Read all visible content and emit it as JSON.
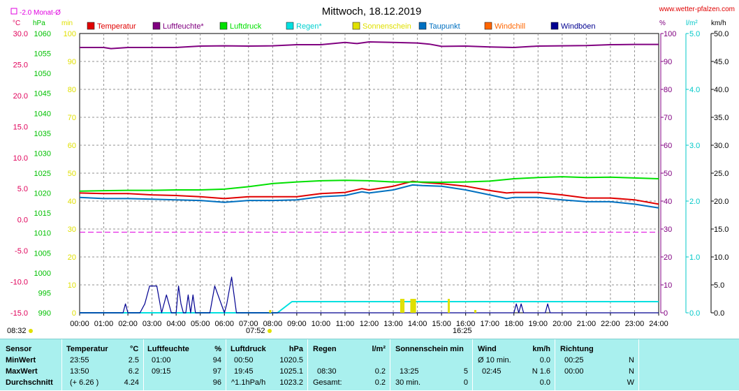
{
  "header": {
    "title": "Mittwoch, 18.12.2019",
    "site": "www.wetter-pfalzen.com",
    "monthly_avg_label": "-2.0 Monat-Ø",
    "monthly_avg_value": -2.0,
    "time_left": "08:32",
    "sunrise": "07:52",
    "sunset": "16:25"
  },
  "units": {
    "temp": "°C",
    "pressure": "hPa",
    "min": "min",
    "percent": "%",
    "rain": "l/m²",
    "wind": "km/h"
  },
  "colors": {
    "temp": "#e00000",
    "humidity": "#800080",
    "pressure": "#00e000",
    "rain": "#00e0e0",
    "sun": "#e0e000",
    "dewpoint": "#0070c0",
    "windchill": "#ff6600",
    "gusts": "#000090",
    "temp_axis": "#e0005a",
    "table_bg": "#a9f0ee"
  },
  "legend": [
    {
      "name": "Temperatur",
      "color": "#e00000"
    },
    {
      "name": "Luftfeuchte*",
      "color": "#800080"
    },
    {
      "name": "Luftdruck",
      "color": "#00e000"
    },
    {
      "name": "Regen*",
      "color": "#00e0e0"
    },
    {
      "name": "Sonnenschein",
      "color": "#e0e000"
    },
    {
      "name": "Taupunkt",
      "color": "#0070c0"
    },
    {
      "name": "Windchill",
      "color": "#ff6600"
    },
    {
      "name": "Windböen",
      "color": "#000090"
    }
  ],
  "chart_data": {
    "type": "line",
    "title": "Mittwoch, 18.12.2019",
    "x_ticks": [
      "00:00",
      "01:00",
      "02:00",
      "03:00",
      "04:00",
      "05:00",
      "06:00",
      "07:00",
      "08:00",
      "09:00",
      "10:00",
      "11:00",
      "12:00",
      "13:00",
      "14:00",
      "15:00",
      "16:00",
      "17:00",
      "18:00",
      "19:00",
      "20:00",
      "21:00",
      "22:00",
      "23:00",
      "24:00"
    ],
    "xlim": [
      0,
      24
    ],
    "grid": true,
    "axes": {
      "temp": {
        "unit": "°C",
        "range": [
          -15,
          30
        ],
        "ticks": [
          "30.0",
          "25.0",
          "20.0",
          "15.0",
          "10.0",
          "5.0",
          "0.0",
          "-5.0",
          "-10.0",
          "-15.0"
        ]
      },
      "pressure": {
        "unit": "hPa",
        "range": [
          990,
          1060
        ],
        "ticks": [
          "1060",
          "1055",
          "1050",
          "1045",
          "1040",
          "1035",
          "1030",
          "1025",
          "1020",
          "1015",
          "1010",
          "1005",
          "1000",
          "995",
          "990"
        ]
      },
      "minutes": {
        "unit": "min",
        "range": [
          0,
          100
        ],
        "ticks": [
          "100",
          "90",
          "80",
          "70",
          "60",
          "50",
          "40",
          "30",
          "20",
          "10",
          "0"
        ]
      },
      "percent": {
        "unit": "%",
        "range": [
          0,
          100
        ],
        "ticks": [
          "100",
          "90",
          "80",
          "70",
          "60",
          "50",
          "40",
          "30",
          "20",
          "10",
          "0"
        ]
      },
      "rain": {
        "unit": "l/m²",
        "range": [
          0,
          5
        ],
        "ticks": [
          "5.0",
          "4.0",
          "3.0",
          "2.0",
          "1.0",
          "0.0"
        ]
      },
      "wind": {
        "unit": "km/h",
        "range": [
          0,
          50
        ],
        "ticks": [
          "50.0",
          "45.0",
          "40.0",
          "35.0",
          "30.0",
          "25.0",
          "20.0",
          "15.0",
          "10.0",
          "5.0",
          "0.0"
        ]
      }
    },
    "series": [
      {
        "name": "Temperatur",
        "axis": "temp",
        "color": "#e00000",
        "x": [
          0,
          1,
          2,
          3,
          4,
          5,
          6,
          7,
          8,
          9,
          10,
          11,
          11.7,
          12,
          13,
          13.8,
          14.2,
          15,
          16,
          17,
          17.7,
          18,
          19,
          20,
          21,
          22,
          23,
          24
        ],
        "y": [
          4.3,
          4.2,
          4.2,
          4.0,
          3.9,
          3.7,
          3.4,
          3.7,
          3.7,
          3.7,
          4.2,
          4.4,
          5.0,
          4.8,
          5.4,
          6.2,
          6.0,
          5.8,
          5.4,
          4.7,
          4.3,
          4.4,
          4.4,
          4.0,
          3.5,
          3.5,
          3.2,
          2.5
        ]
      },
      {
        "name": "Taupunkt",
        "axis": "temp",
        "color": "#0070c0",
        "x": [
          0,
          1,
          2,
          3,
          4,
          5,
          6,
          7,
          8,
          9,
          10,
          11,
          11.7,
          12,
          13,
          13.8,
          14.2,
          15,
          16,
          17,
          17.7,
          18,
          19,
          20,
          21,
          22,
          23,
          24
        ],
        "y": [
          3.6,
          3.4,
          3.4,
          3.3,
          3.2,
          3.1,
          2.8,
          3.1,
          3.1,
          3.2,
          3.7,
          3.9,
          4.5,
          4.3,
          4.8,
          5.6,
          5.5,
          5.4,
          4.8,
          4.0,
          3.4,
          3.6,
          3.6,
          3.2,
          2.9,
          2.9,
          2.5,
          1.9
        ]
      },
      {
        "name": "Luftdruck",
        "axis": "pressure",
        "color": "#00e000",
        "x": [
          0,
          1,
          2,
          3,
          4,
          5,
          6,
          7,
          8,
          9,
          10,
          11,
          12,
          13,
          14,
          15,
          16,
          17,
          18,
          19,
          20,
          21,
          22,
          23,
          24
        ],
        "y": [
          1020.5,
          1020.6,
          1020.7,
          1020.7,
          1020.8,
          1020.8,
          1021.0,
          1021.6,
          1022.4,
          1022.8,
          1023.1,
          1023.2,
          1023.1,
          1022.8,
          1022.8,
          1022.7,
          1022.8,
          1023.0,
          1023.6,
          1023.9,
          1024.1,
          1023.9,
          1024.0,
          1023.8,
          1023.6
        ]
      },
      {
        "name": "Luftfeuchte*",
        "axis": "percent",
        "color": "#800080",
        "x": [
          0,
          1,
          1.3,
          2,
          3,
          4,
          5,
          6,
          7,
          8,
          9,
          10,
          11,
          11.5,
          12,
          13,
          14,
          14.5,
          15,
          16,
          17,
          18,
          19,
          20,
          21,
          22,
          23,
          24
        ],
        "y": [
          95,
          95,
          94.6,
          95,
          95,
          95,
          95.5,
          95.6,
          95.5,
          95.6,
          96,
          96,
          96.8,
          96.4,
          97,
          96.8,
          96.6,
          96.2,
          95.4,
          95.5,
          95.2,
          95,
          95.5,
          95.6,
          95.7,
          96,
          96.1,
          96.1
        ]
      },
      {
        "name": "Regen*",
        "axis": "rain",
        "color": "#00e0e0",
        "x": [
          0,
          8.2,
          8.5,
          8.8,
          9.3,
          10,
          24
        ],
        "y": [
          0,
          0,
          0.1,
          0.2,
          0.2,
          0.2,
          0.2
        ]
      },
      {
        "name": "Windböen",
        "axis": "wind",
        "color": "#000090",
        "x": [
          0,
          1.8,
          1.9,
          2.0,
          2.2,
          2.3,
          2.5,
          2.7,
          2.9,
          3.2,
          3.4,
          3.6,
          3.8,
          4.0,
          4.1,
          4.2,
          4.3,
          4.4,
          4.5,
          4.6,
          4.7,
          4.8,
          5.0,
          5.2,
          5.4,
          5.6,
          6.0,
          6.1,
          6.3,
          6.5,
          6.7,
          18.0,
          18.1,
          18.2,
          18.3,
          18.4,
          19.3,
          19.4,
          19.5,
          24
        ],
        "y": [
          0,
          0,
          1.6,
          0,
          0,
          0,
          0,
          1.6,
          4.8,
          4.8,
          0,
          3.2,
          0,
          0,
          4.8,
          1.6,
          0,
          0,
          3.2,
          0,
          3.2,
          0,
          0,
          0,
          0,
          4.8,
          0,
          1.6,
          6.4,
          0,
          0,
          0,
          1.6,
          0,
          1.6,
          0,
          0,
          1.6,
          0,
          0
        ]
      },
      {
        "name": "Sonnenschein",
        "axis": "minutes",
        "color": "#e0e000",
        "bars": [
          {
            "x": 7.9,
            "y": 1
          },
          {
            "x": 13.33,
            "y": 5
          },
          {
            "x": 13.42,
            "y": 5
          },
          {
            "x": 13.75,
            "y": 5
          },
          {
            "x": 13.83,
            "y": 5
          },
          {
            "x": 13.9,
            "y": 5
          },
          {
            "x": 15.3,
            "y": 5
          },
          {
            "x": 16.4,
            "y": 1
          }
        ]
      }
    ],
    "reference_lines": [
      {
        "label": "-2.0 Monat-Ø",
        "axis": "temp",
        "value": -2.0,
        "color": "#e000e0"
      }
    ]
  },
  "table": {
    "sensor": {
      "header": "Sensor",
      "rows": [
        "MinWert",
        "MaxWert",
        "Durchschnitt"
      ]
    },
    "temperature": {
      "header": "Temperatur",
      "unit": "°C",
      "rows": [
        {
          "time": "23:55",
          "value": "2.5"
        },
        {
          "time": "13:50",
          "value": "6.2"
        },
        {
          "time": "(+ 6.26 )",
          "value": "4.24"
        }
      ]
    },
    "humidity": {
      "header": "Luftfeuchte",
      "unit": "%",
      "rows": [
        {
          "time": "01:00",
          "value": "94"
        },
        {
          "time": "09:15",
          "value": "97"
        },
        {
          "time": "",
          "value": "96"
        }
      ]
    },
    "pressure": {
      "header": "Luftdruck",
      "unit": "hPa",
      "rows": [
        {
          "time": "00:50",
          "value": "1020.5"
        },
        {
          "time": "19:45",
          "value": "1025.1"
        },
        {
          "time": "^1.1hPa/h",
          "value": "1023.2"
        }
      ]
    },
    "rain": {
      "header": "Regen",
      "unit": "l/m²",
      "rows": [
        {
          "time": "",
          "value": ""
        },
        {
          "time": "08:30",
          "value": "0.2"
        },
        {
          "time": "Gesamt:",
          "value": "0.2"
        }
      ]
    },
    "sunshine": {
      "header": "Sonnenschein min",
      "rows": [
        {
          "time": "",
          "value": ""
        },
        {
          "time": "13:25",
          "value": "5"
        },
        {
          "time": "30 min.",
          "value": "0"
        }
      ]
    },
    "wind": {
      "header": "Wind",
      "unit": "km/h",
      "rows": [
        {
          "time": "Ø 10 min.",
          "value": "0.0"
        },
        {
          "time": "02:45",
          "value": "N 1.6"
        },
        {
          "time": "",
          "value": "0.0"
        }
      ]
    },
    "direction": {
      "header": "Richtung",
      "rows": [
        {
          "time": "00:25",
          "value": "N"
        },
        {
          "time": "00:00",
          "value": "N"
        },
        {
          "time": "",
          "value": "W"
        }
      ]
    }
  }
}
